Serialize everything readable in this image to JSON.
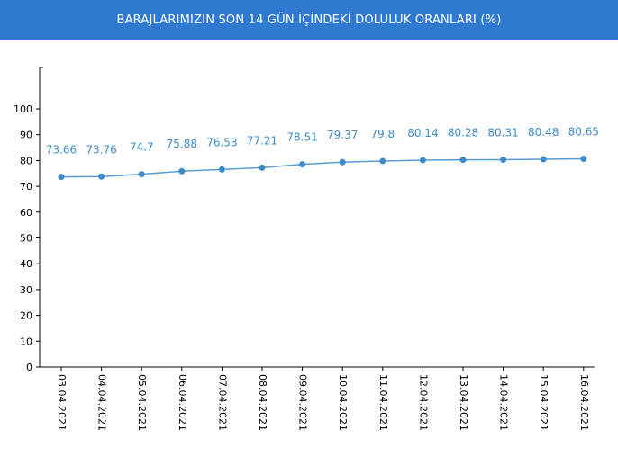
{
  "header": {
    "title": "BARAJLARIMIZIN SON 14 GÜN İÇİNDEKİ DOLULUK ORANLARI (%)"
  },
  "colors": {
    "header_bg": "#2f7ad0",
    "line": "#5a9bcf",
    "marker": "#3d8cc9",
    "label": "#3d8cc9",
    "axis": "#000000"
  },
  "chart_data": {
    "type": "line",
    "title": "BARAJLARIMIZIN SON 14 GÜN İÇİNDEKİ DOLULUK ORANLARI (%)",
    "categories": [
      "03.04.2021",
      "04.04.2021",
      "05.04.2021",
      "06.04.2021",
      "07.04.2021",
      "08.04.2021",
      "09.04.2021",
      "10.04.2021",
      "11.04.2021",
      "12.04.2021",
      "13.04.2021",
      "14.04.2021",
      "15.04.2021",
      "16.04.2021"
    ],
    "series": [
      {
        "values": [
          73.66,
          73.76,
          74.7,
          75.88,
          76.53,
          77.21,
          78.51,
          79.37,
          79.8,
          80.14,
          80.28,
          80.31,
          80.48,
          80.65
        ],
        "labels": [
          "73.66",
          "73.76",
          "74.7",
          "75.88",
          "76.53",
          "77.21",
          "78.51",
          "79.37",
          "79.8",
          "80.14",
          "80.28",
          "80.31",
          "80.48",
          "80.65"
        ]
      }
    ],
    "y_ticks": [
      "0",
      "10",
      "20",
      "30",
      "40",
      "50",
      "60",
      "70",
      "80",
      "90",
      "100"
    ],
    "ylim": [
      0,
      115
    ],
    "xlabel": "",
    "ylabel": "",
    "grid": false,
    "legend": "none"
  }
}
